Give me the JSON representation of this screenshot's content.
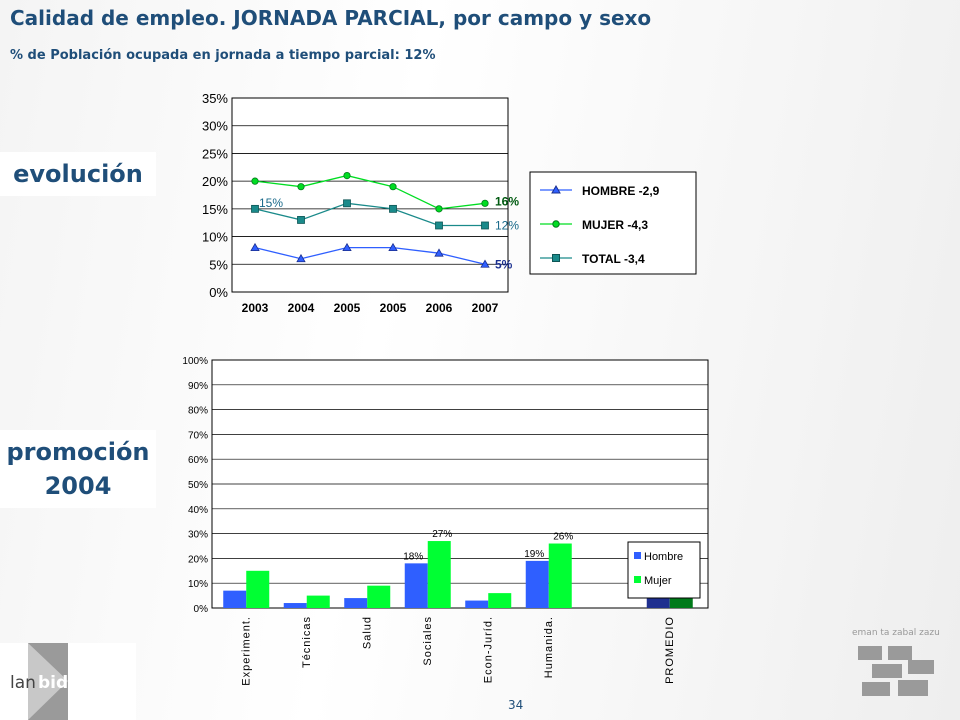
{
  "header": {
    "title": "Calidad de empleo. JORNADA PARCIAL, por campo y sexo",
    "subtitle": "% de Población ocupada en jornada a tiempo parcial: 12%"
  },
  "labels": {
    "evolucion": "evolución",
    "promocion_line1": "promoción",
    "promocion_line2": "2004"
  },
  "page_number": "34",
  "logos": {
    "left_lan": "lan",
    "left_bide": "bide",
    "right_caption": "eman ta zabal zazu"
  },
  "colors": {
    "title": "#1f4e79",
    "hombre": "#2f5fff",
    "mujer": "#00ff33",
    "total": "#1a8a8a",
    "promedio_hombre": "#1f2f8f",
    "promedio_mujer": "#007a1a"
  },
  "chart_data": [
    {
      "type": "line",
      "x": [
        "2003",
        "2004",
        "2005",
        "2005",
        "2006",
        "2007"
      ],
      "ylim": [
        0,
        35
      ],
      "yticks": [
        "0%",
        "5%",
        "10%",
        "15%",
        "20%",
        "25%",
        "30%",
        "35%"
      ],
      "series": [
        {
          "name": "HOMBRE -2,9",
          "values": [
            8,
            6,
            8,
            8,
            7,
            5
          ],
          "marker": "triangle",
          "color": "#2f5fff"
        },
        {
          "name": "MUJER -4,3",
          "values": [
            20,
            19,
            21,
            19,
            15,
            16
          ],
          "marker": "circle",
          "color": "#00dd22"
        },
        {
          "name": "TOTAL -3,4",
          "values": [
            15,
            13,
            16,
            15,
            12,
            12
          ],
          "marker": "square",
          "color": "#1a8a8a"
        }
      ],
      "annotations": [
        "15%",
        "16%",
        "12%",
        "5%"
      ],
      "legend": "right",
      "grid": true
    },
    {
      "type": "bar",
      "categories": [
        "Experiment.",
        "Técnicas",
        "Salud",
        "Sociales",
        "Econ-Juríd.",
        "Humanida.",
        "PROMEDIO"
      ],
      "ylim": [
        0,
        100
      ],
      "yticks": [
        "0%",
        "10%",
        "20%",
        "30%",
        "40%",
        "50%",
        "60%",
        "70%",
        "80%",
        "90%",
        "100%"
      ],
      "series": [
        {
          "name": "Hombre",
          "values": [
            7,
            2,
            4,
            18,
            3,
            19,
            5
          ],
          "color": "#2f5fff"
        },
        {
          "name": "Mujer",
          "values": [
            15,
            5,
            9,
            27,
            6,
            26,
            16
          ],
          "color": "#00ff33"
        }
      ],
      "data_labels": {
        "Sociales": [
          "18%",
          "27%"
        ],
        "Humanida.": [
          "19%",
          "26%"
        ],
        "PROMEDIO": [
          "5%",
          "16%"
        ]
      },
      "legend": "right",
      "grid": true
    }
  ]
}
